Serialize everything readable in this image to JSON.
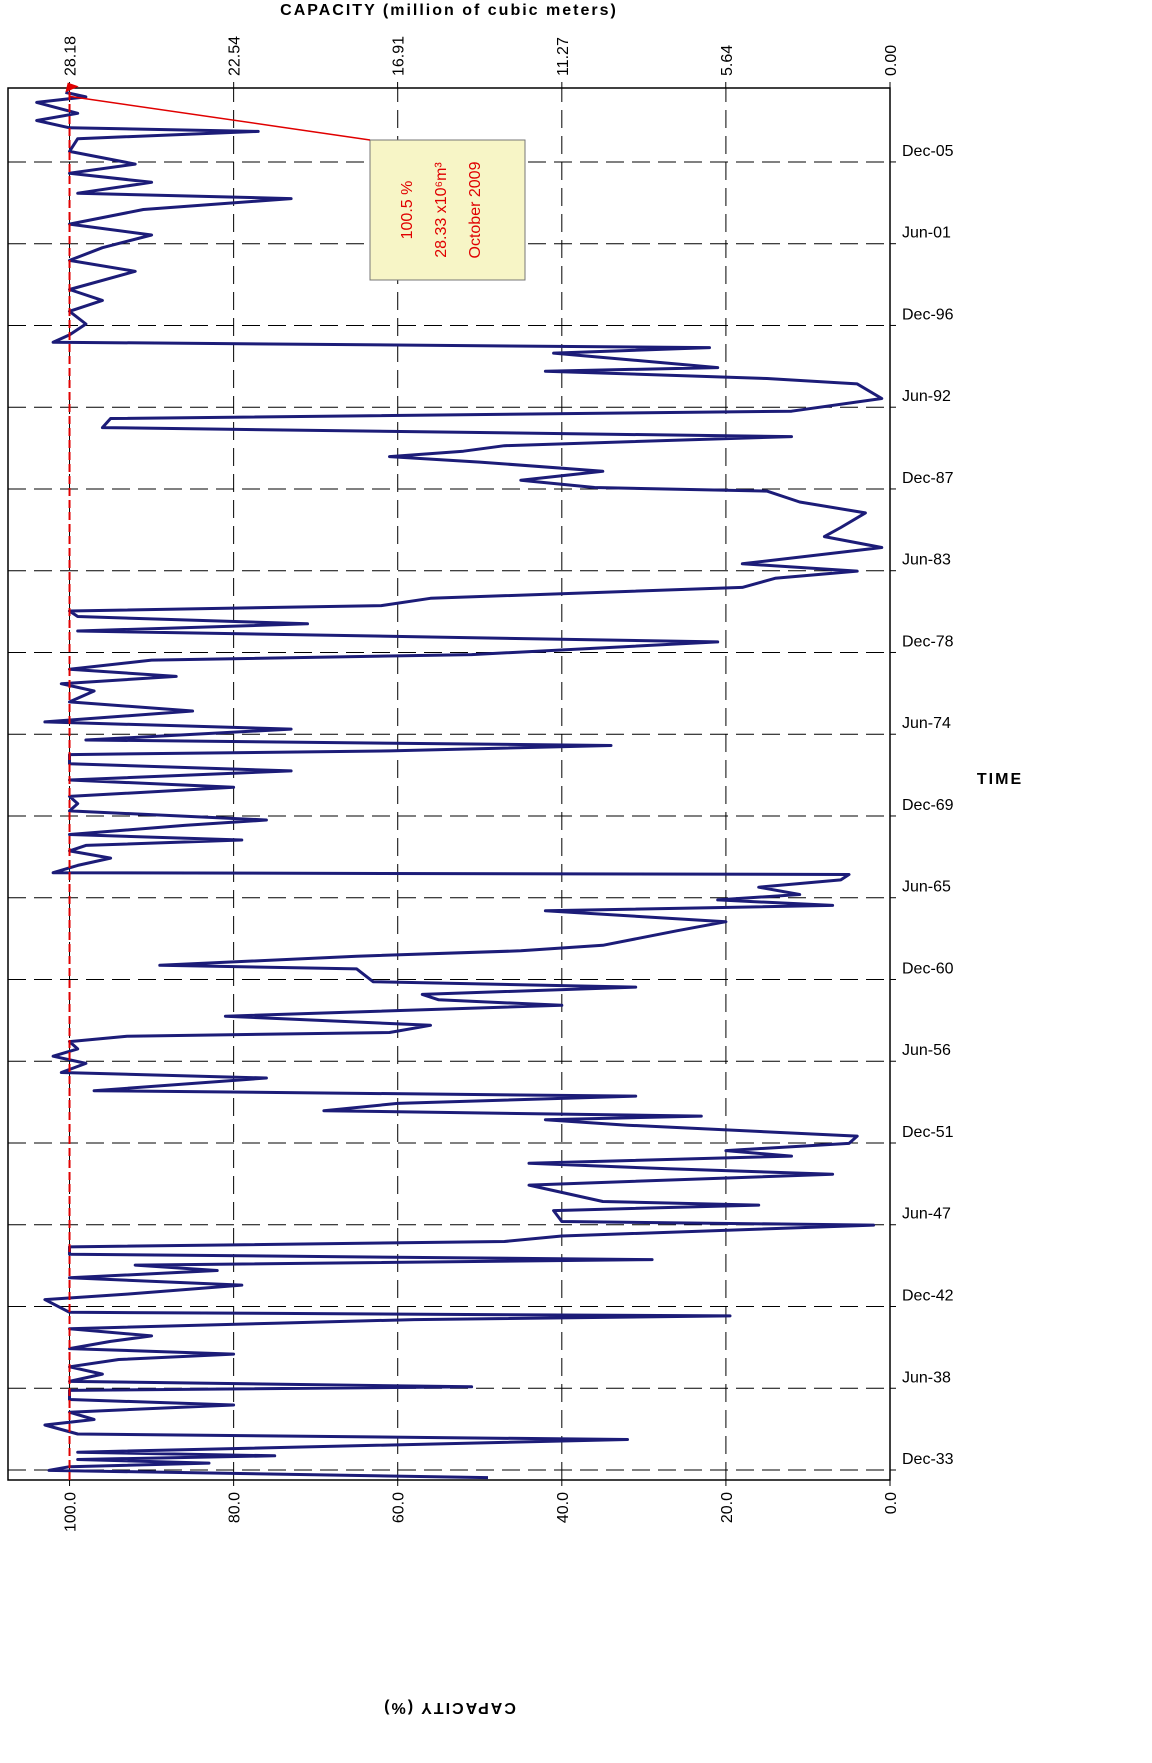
{
  "chart_data": {
    "type": "line",
    "y_label": "CAPACITY (%)",
    "y2_label": "CAPACITY (million of cubic meters)",
    "x_label": "TIME",
    "color": "#1c1c78",
    "grid": true,
    "xlim": [
      1933.37,
      2009.99
    ],
    "xticks": [
      {
        "value": 1933.92,
        "label": "Dec-33"
      },
      {
        "value": 1938.42,
        "label": "Jun-38"
      },
      {
        "value": 1942.92,
        "label": "Dec-42"
      },
      {
        "value": 1947.42,
        "label": "Jun-47"
      },
      {
        "value": 1951.92,
        "label": "Dec-51"
      },
      {
        "value": 1956.42,
        "label": "Jun-56"
      },
      {
        "value": 1960.92,
        "label": "Dec-60"
      },
      {
        "value": 1965.42,
        "label": "Jun-65"
      },
      {
        "value": 1969.92,
        "label": "Dec-69"
      },
      {
        "value": 1974.42,
        "label": "Jun-74"
      },
      {
        "value": 1978.92,
        "label": "Dec-78"
      },
      {
        "value": 1983.42,
        "label": "Jun-83"
      },
      {
        "value": 1987.92,
        "label": "Dec-87"
      },
      {
        "value": 1992.42,
        "label": "Jun-92"
      },
      {
        "value": 1996.92,
        "label": "Dec-96"
      },
      {
        "value": 2001.42,
        "label": "Jun-01"
      },
      {
        "value": 2005.92,
        "label": "Dec-05"
      }
    ],
    "ylim": [
      0,
      107.5
    ],
    "yticks": [
      {
        "value": 0,
        "label": "0.0"
      },
      {
        "value": 20,
        "label": "20.0"
      },
      {
        "value": 40,
        "label": "40.0"
      },
      {
        "value": 60,
        "label": "60.0"
      },
      {
        "value": 80,
        "label": "80.0"
      },
      {
        "value": 100,
        "label": "100.0"
      }
    ],
    "y2lim": [
      0,
      30.29
    ],
    "y2ticks": [
      {
        "value": 0,
        "label": "0.00"
      },
      5.64,
      11.27,
      16.91,
      22.54,
      28.18
    ],
    "reference_line": {
      "value": 100,
      "color": "#e00000"
    },
    "annotation": [
      "100.5 %",
      "28.33 x10⁶m³",
      "October 2009"
    ],
    "x": [
      1933.5,
      1933.9,
      1934.1,
      1934.3,
      1934.5,
      1934.7,
      1934.9,
      1935.6,
      1935.9,
      1936.4,
      1936.7,
      1937.1,
      1937.5,
      1937.8,
      1938.3,
      1938.5,
      1938.8,
      1939.2,
      1939.6,
      1940.0,
      1940.3,
      1940.6,
      1941.0,
      1941.3,
      1941.7,
      1942.0,
      1942.2,
      1942.4,
      1942.6,
      1943.3,
      1943.6,
      1944.1,
      1944.5,
      1944.9,
      1945.2,
      1945.5,
      1945.8,
      1946.2,
      1946.5,
      1946.8,
      1947.4,
      1947.6,
      1948.2,
      1948.5,
      1948.7,
      1949.6,
      1950.2,
      1950.5,
      1950.8,
      1951.2,
      1951.5,
      1951.9,
      1952.3,
      1952.9,
      1953.2,
      1953.4,
      1953.7,
      1954.1,
      1954.5,
      1954.8,
      1955.5,
      1955.8,
      1956.3,
      1956.7,
      1957.1,
      1957.5,
      1957.8,
      1958.0,
      1958.4,
      1958.9,
      1959.5,
      1959.8,
      1960.1,
      1960.5,
      1960.8,
      1961.5,
      1961.7,
      1962.2,
      1962.5,
      1962.8,
      1963.6,
      1964.1,
      1964.7,
      1965.0,
      1965.3,
      1965.6,
      1966.0,
      1966.4,
      1966.7,
      1966.8,
      1967.2,
      1967.6,
      1968.0,
      1968.3,
      1968.6,
      1968.9,
      1969.4,
      1969.7,
      1970.2,
      1970.6,
      1971.0,
      1971.5,
      1971.9,
      1972.4,
      1972.8,
      1973.3,
      1973.5,
      1973.8,
      1974.1,
      1974.7,
      1975.1,
      1975.7,
      1976.2,
      1976.8,
      1977.2,
      1977.6,
      1978.0,
      1978.5,
      1978.8,
      1979.5,
      1980.1,
      1980.5,
      1980.9,
      1981.2,
      1981.5,
      1981.9,
      1982.5,
      1983.0,
      1983.4,
      1983.8,
      1984.7,
      1985.3,
      1985.8,
      1986.6,
      1987.2,
      1987.8,
      1988.0,
      1988.4,
      1988.9,
      1989.4,
      1989.7,
      1990.0,
      1990.3,
      1990.8,
      1991.3,
      1991.8,
      1992.2,
      1992.9,
      1993.7,
      1994.0,
      1994.4,
      1994.6,
      1995.4,
      1995.7,
      1996.0,
      1996.4,
      1997.0,
      1997.7,
      1998.3,
      1998.9,
      1999.9,
      2000.5,
      2001.2,
      2001.9,
      2002.5,
      2003.3,
      2003.9,
      2004.2,
      2004.8,
      2005.3,
      2005.8,
      2006.5,
      2007.2,
      2007.6,
      2007.8,
      2008.2,
      2008.6,
      2009.2,
      2009.5,
      2009.75
    ],
    "values": [
      49,
      102.5,
      100,
      83,
      99,
      75,
      99,
      32,
      99,
      103,
      97,
      100,
      80,
      100,
      100,
      51,
      100,
      96,
      100,
      94,
      80,
      100,
      95,
      90,
      100,
      75,
      58,
      19.5,
      100,
      103,
      93,
      79,
      100,
      82,
      92,
      29,
      100,
      100,
      47,
      40,
      2,
      40,
      41,
      16,
      35,
      44,
      7,
      27,
      44,
      12,
      20,
      5,
      4,
      32,
      42,
      23,
      69,
      60,
      31,
      97,
      76,
      101,
      98,
      102,
      99,
      100,
      93,
      61,
      56,
      81,
      40,
      55,
      57,
      31,
      63,
      65,
      89,
      65,
      45,
      35,
      26,
      20,
      42,
      7,
      21,
      11,
      16,
      6,
      5,
      102,
      99,
      95,
      100,
      98,
      79,
      100,
      86,
      76,
      100,
      99,
      100,
      80,
      100,
      73,
      100,
      100,
      61,
      34,
      98,
      73,
      103,
      85,
      100,
      97,
      101,
      87,
      100,
      90,
      51,
      21,
      99,
      71,
      99,
      100,
      62,
      56,
      18,
      14,
      4,
      18,
      1,
      8,
      6,
      3,
      11,
      15,
      36,
      45,
      35,
      50,
      61,
      52,
      47,
      12,
      96,
      95,
      12,
      1,
      4,
      15,
      42,
      21,
      41,
      22,
      102,
      100,
      98,
      100,
      96,
      100,
      92,
      100,
      96,
      90,
      100,
      91,
      73,
      99,
      90,
      100,
      92,
      100,
      99,
      77,
      100,
      104,
      99,
      104,
      98,
      100.5
    ]
  }
}
